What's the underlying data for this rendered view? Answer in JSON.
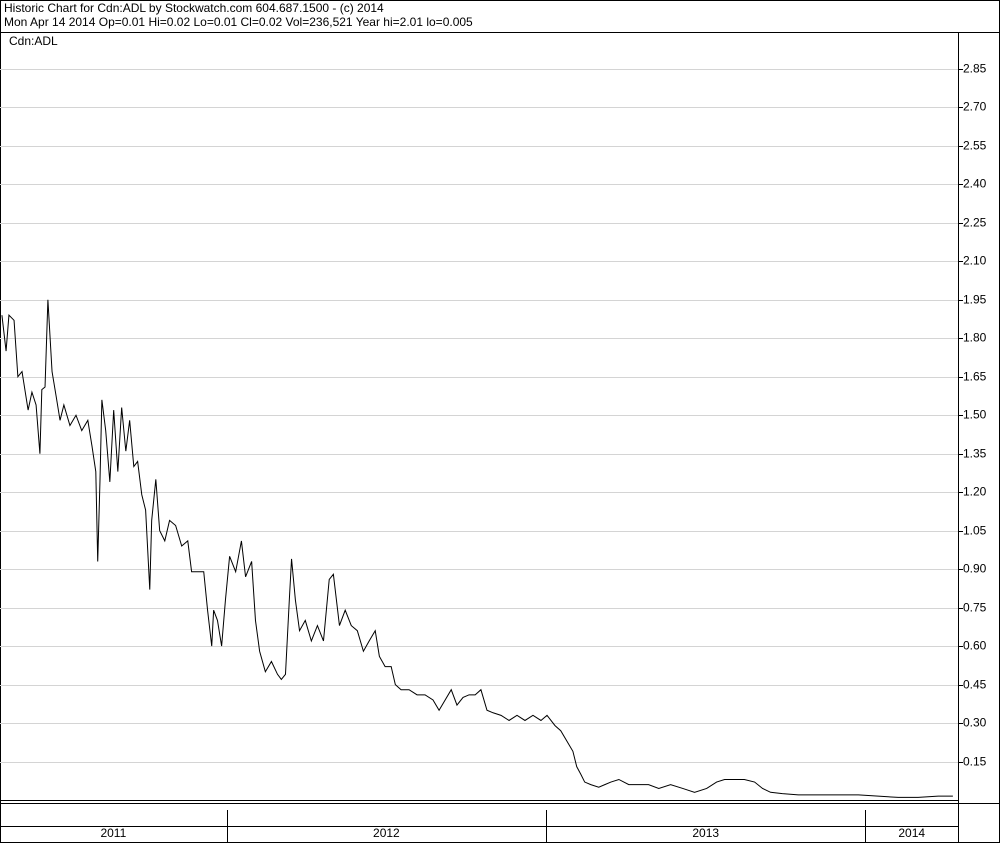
{
  "chart_data": {
    "type": "line",
    "title": "Historic Chart for Cdn:ADL by Stockwatch.com 604.687.1500 - (c) 2014",
    "subtitle": "Mon Apr 14 2014  Op=0.01  Hi=0.02  Lo=0.01  Cl=0.02  Vol=236,521  Year hi=2.01  lo=0.005",
    "series_name": "Cdn:ADL",
    "color": "#000000",
    "grid": true,
    "xlim": [
      2011.29,
      2014.29
    ],
    "xticks": [
      2012,
      2013,
      2014
    ],
    "year_labels": [
      "2011",
      "2012",
      "2013",
      "2014"
    ],
    "ylim": [
      0,
      2.99
    ],
    "yticks": [
      0.15,
      {
        "value": 0.3,
        "label": "0.30"
      },
      0.45,
      {
        "value": 0.6,
        "label": "0.60"
      },
      0.75,
      {
        "value": 0.9,
        "label": "0.90"
      },
      1.05,
      {
        "value": 1.2,
        "label": "1.20"
      },
      1.35,
      {
        "value": 1.5,
        "label": "1.50"
      },
      1.65,
      {
        "value": 1.8,
        "label": "1.80"
      },
      1.95,
      {
        "value": 2.1,
        "label": "2.10"
      },
      2.25,
      {
        "value": 2.4,
        "label": "2.40"
      },
      2.55,
      {
        "value": 2.7,
        "label": "2.70"
      },
      2.85
    ],
    "x": [
      2011.296,
      2011.309,
      2011.318,
      2011.334,
      2011.346,
      2011.359,
      2011.378,
      2011.39,
      2011.403,
      2011.415,
      2011.421,
      2011.431,
      2011.44,
      2011.453,
      2011.465,
      2011.478,
      2011.49,
      2011.509,
      2011.528,
      2011.546,
      2011.565,
      2011.578,
      2011.59,
      2011.596,
      2011.603,
      2011.609,
      2011.621,
      2011.634,
      2011.646,
      2011.659,
      2011.671,
      2011.684,
      2011.696,
      2011.709,
      2011.721,
      2011.734,
      2011.746,
      2011.759,
      2011.765,
      2011.778,
      2011.79,
      2011.806,
      2011.821,
      2011.84,
      2011.859,
      2011.878,
      2011.89,
      2011.909,
      2011.928,
      2011.94,
      2011.953,
      2011.959,
      2011.971,
      2011.984,
      2011.996,
      2012.009,
      2012.028,
      2012.046,
      2012.059,
      2012.078,
      2012.09,
      2012.103,
      2012.121,
      2012.14,
      2012.159,
      2012.171,
      2012.184,
      2012.196,
      2012.203,
      2012.215,
      2012.228,
      2012.246,
      2012.265,
      2012.284,
      2012.303,
      2012.321,
      2012.334,
      2012.353,
      2012.371,
      2012.39,
      2012.409,
      2012.428,
      2012.446,
      2012.465,
      2012.478,
      2012.496,
      2012.515,
      2012.528,
      2012.546,
      2012.571,
      2012.596,
      2012.621,
      2012.646,
      2012.665,
      2012.684,
      2012.703,
      2012.721,
      2012.74,
      2012.759,
      2012.778,
      2012.796,
      2012.815,
      2012.834,
      2012.859,
      2012.884,
      2012.909,
      2012.934,
      2012.959,
      2012.984,
      2013.003,
      2013.028,
      2013.046,
      2013.065,
      2013.084,
      2013.096,
      2013.109,
      2013.121,
      2013.14,
      2013.165,
      2013.184,
      2013.203,
      2013.228,
      2013.259,
      2013.29,
      2013.321,
      2013.353,
      2013.39,
      2013.428,
      2013.465,
      2013.503,
      2013.534,
      2013.559,
      2013.59,
      2013.621,
      2013.653,
      2013.678,
      2013.703,
      2013.74,
      2013.79,
      2013.853,
      2013.915,
      2013.978,
      2014.04,
      2014.103,
      2014.165,
      2014.228,
      2014.274
    ],
    "values": [
      1.89,
      1.75,
      1.89,
      1.87,
      1.65,
      1.67,
      1.52,
      1.59,
      1.54,
      1.35,
      1.6,
      1.61,
      1.95,
      1.67,
      1.58,
      1.48,
      1.54,
      1.46,
      1.5,
      1.44,
      1.48,
      1.38,
      1.28,
      0.93,
      1.24,
      1.56,
      1.44,
      1.24,
      1.52,
      1.28,
      1.53,
      1.36,
      1.48,
      1.3,
      1.32,
      1.19,
      1.13,
      0.82,
      1.09,
      1.25,
      1.05,
      1.01,
      1.09,
      1.07,
      0.99,
      1.01,
      0.89,
      0.89,
      0.89,
      0.74,
      0.6,
      0.74,
      0.7,
      0.6,
      0.78,
      0.95,
      0.89,
      1.01,
      0.87,
      0.93,
      0.7,
      0.58,
      0.5,
      0.54,
      0.49,
      0.47,
      0.49,
      0.78,
      0.94,
      0.78,
      0.66,
      0.7,
      0.62,
      0.68,
      0.62,
      0.86,
      0.88,
      0.68,
      0.74,
      0.68,
      0.66,
      0.58,
      0.62,
      0.66,
      0.56,
      0.52,
      0.52,
      0.45,
      0.43,
      0.43,
      0.41,
      0.41,
      0.39,
      0.35,
      0.39,
      0.43,
      0.37,
      0.4,
      0.41,
      0.41,
      0.43,
      0.35,
      0.34,
      0.33,
      0.31,
      0.33,
      0.31,
      0.33,
      0.31,
      0.33,
      0.29,
      0.27,
      0.23,
      0.19,
      0.13,
      0.1,
      0.07,
      0.06,
      0.05,
      0.06,
      0.07,
      0.08,
      0.06,
      0.06,
      0.06,
      0.045,
      0.06,
      0.045,
      0.03,
      0.045,
      0.07,
      0.08,
      0.08,
      0.08,
      0.07,
      0.045,
      0.03,
      0.025,
      0.02,
      0.02,
      0.02,
      0.02,
      0.015,
      0.01,
      0.01,
      0.015,
      0.015
    ]
  }
}
